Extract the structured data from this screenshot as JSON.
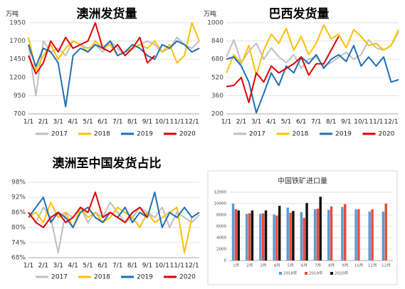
{
  "chart_data": [
    {
      "type": "line",
      "title": "澳洲发货量",
      "y_label": "万吨",
      "categories": [
        "1/1",
        null,
        "2/1",
        null,
        "3/1",
        null,
        "4/1",
        null,
        "5/1",
        null,
        "6/1",
        null,
        "7/1",
        null,
        "8/1",
        null,
        "9/1",
        null,
        "10/1",
        null,
        "11/1",
        null,
        "12/1",
        null
      ],
      "ylim": [
        700,
        1950
      ],
      "yticks": [
        700,
        950,
        1200,
        1450,
        1700,
        1950
      ],
      "grid": true,
      "series": [
        {
          "name": "2017",
          "color": "#bfbfbf",
          "values": [
            1650,
            950,
            1700,
            1550,
            1600,
            1500,
            1700,
            1650,
            1600,
            1650,
            1550,
            1700,
            1600,
            1500,
            1600,
            1650,
            1700,
            1650,
            1550,
            1600,
            1750,
            1650,
            1600,
            1700
          ]
        },
        {
          "name": "2018",
          "color": "#ffc000",
          "values": [
            1750,
            1300,
            1500,
            1650,
            1450,
            1600,
            1700,
            1650,
            1550,
            1700,
            1600,
            1650,
            1500,
            1550,
            1600,
            1650,
            1600,
            1700,
            1550,
            1650,
            1400,
            1500,
            1950,
            1700
          ]
        },
        {
          "name": "2019",
          "color": "#1f6fb4",
          "values": [
            1650,
            1350,
            1600,
            1550,
            1400,
            800,
            1500,
            1600,
            1550,
            1650,
            1600,
            1700,
            1500,
            1550,
            1650,
            1600,
            1500,
            1450,
            1650,
            1600,
            1700,
            1650,
            1550,
            1600
          ]
        },
        {
          "name": "2020",
          "color": "#e00000",
          "values": [
            1500,
            1250,
            1400,
            1700,
            1550,
            1750,
            1600,
            1650,
            1700,
            1950,
            1600,
            1550,
            1650,
            1500,
            1600,
            1750,
            1400,
            1500,
            null,
            null,
            null,
            null,
            null,
            null
          ]
        }
      ]
    },
    {
      "type": "line",
      "title": "巴西发货量",
      "y_label": "万吨",
      "categories": [
        "1/1",
        null,
        "2/1",
        null,
        "3/1",
        null,
        "4/1",
        null,
        "5/1",
        null,
        "6/1",
        null,
        "7/1",
        null,
        "8/1",
        null,
        "9/1",
        null,
        "10/1",
        null,
        "11/1",
        null,
        "12/1",
        null
      ],
      "ylim": [
        200,
        1000
      ],
      "yticks": [
        200,
        360,
        520,
        680,
        840,
        1000
      ],
      "grid": true,
      "series": [
        {
          "name": "2017",
          "color": "#bfbfbf",
          "values": [
            700,
            850,
            650,
            750,
            820,
            680,
            780,
            700,
            650,
            720,
            600,
            680,
            700,
            620,
            650,
            700,
            740,
            680,
            720,
            850,
            780,
            760,
            800,
            920
          ]
        },
        {
          "name": "2018",
          "color": "#ffc000",
          "values": [
            560,
            720,
            640,
            800,
            540,
            760,
            900,
            820,
            950,
            760,
            880,
            720,
            820,
            980,
            860,
            900,
            780,
            940,
            880,
            800,
            820,
            760,
            800,
            940
          ]
        },
        {
          "name": "2019",
          "color": "#1f6fb4",
          "values": [
            680,
            700,
            620,
            480,
            210,
            380,
            560,
            450,
            620,
            560,
            700,
            640,
            720,
            600,
            680,
            720,
            660,
            800,
            620,
            700,
            620,
            700,
            480,
            500
          ]
        },
        {
          "name": "2020",
          "color": "#e00000",
          "values": [
            440,
            450,
            520,
            300,
            560,
            480,
            620,
            560,
            600,
            640,
            700,
            540,
            640,
            640,
            760,
            880,
            null,
            null,
            null,
            null,
            null,
            null,
            null,
            null
          ]
        }
      ]
    },
    {
      "type": "line",
      "title": "澳洲至中国发货占比",
      "categories": [
        "1/1",
        null,
        "2/1",
        null,
        "3/1",
        null,
        "4/1",
        null,
        "5/1",
        null,
        "6/1",
        null,
        "7/1",
        null,
        "8/1",
        null,
        "9/1",
        null,
        "10/1",
        null,
        "11/1",
        null,
        "12/1",
        null
      ],
      "ylim": [
        68,
        98
      ],
      "yticks": [
        {
          "value": 68,
          "label": "68%"
        },
        {
          "value": 74,
          "label": "74%"
        },
        {
          "value": 80,
          "label": "80%"
        },
        {
          "value": 86,
          "label": "86%"
        },
        {
          "value": 92,
          "label": "92%"
        },
        {
          "value": 98,
          "label": "98%"
        }
      ],
      "grid": true,
      "series": [
        {
          "name": "2017",
          "color": "#bfbfbf",
          "values": [
            86,
            82,
            88,
            84,
            70,
            86,
            84,
            88,
            82,
            86,
            84,
            90,
            86,
            82,
            84,
            88,
            86,
            84,
            88,
            80,
            86,
            84,
            82,
            85
          ]
        },
        {
          "name": "2018",
          "color": "#ffc000",
          "values": [
            84,
            86,
            82,
            90,
            84,
            86,
            80,
            88,
            84,
            86,
            82,
            84,
            88,
            86,
            84,
            80,
            86,
            82,
            84,
            86,
            88,
            70,
            84,
            86
          ]
        },
        {
          "name": "2019",
          "color": "#1f6fb4",
          "values": [
            84,
            88,
            92,
            82,
            86,
            84,
            80,
            86,
            88,
            84,
            82,
            86,
            84,
            88,
            82,
            86,
            84,
            94,
            80,
            86,
            84,
            88,
            84,
            86
          ]
        },
        {
          "name": "2020",
          "color": "#e00000",
          "values": [
            86,
            82,
            80,
            84,
            86,
            82,
            84,
            88,
            86,
            94,
            84,
            86,
            84,
            82,
            86,
            88,
            84,
            null,
            null,
            null,
            null,
            null,
            null,
            null
          ]
        }
      ]
    },
    {
      "type": "bar",
      "title": "中国铁矿进口量",
      "categories": [
        "1月",
        "2月",
        "3月",
        "4月",
        "5月",
        "6月",
        "7月",
        "8月",
        "9月",
        "10月",
        "11月",
        "12月"
      ],
      "ylim": [
        0,
        12000
      ],
      "yticks": [
        0,
        2000,
        4000,
        6000,
        8000,
        10000,
        12000
      ],
      "grid": true,
      "series": [
        {
          "name": "2018年",
          "color": "#5b9bd5",
          "values": [
            10000,
            8200,
            8200,
            8100,
            9300,
            8500,
            9000,
            8900,
            9400,
            9000,
            8600,
            8600
          ]
        },
        {
          "name": "2019年",
          "color": "#e74c3c",
          "values": [
            9000,
            8300,
            8300,
            7900,
            8400,
            7500,
            9100,
            9500,
            9900,
            9000,
            9000,
            10000
          ]
        },
        {
          "name": "2020年",
          "color": "#111111",
          "values": [
            8800,
            8800,
            8800,
            9600,
            8700,
            10100,
            11200,
            null,
            null,
            null,
            null,
            null
          ]
        }
      ]
    }
  ]
}
